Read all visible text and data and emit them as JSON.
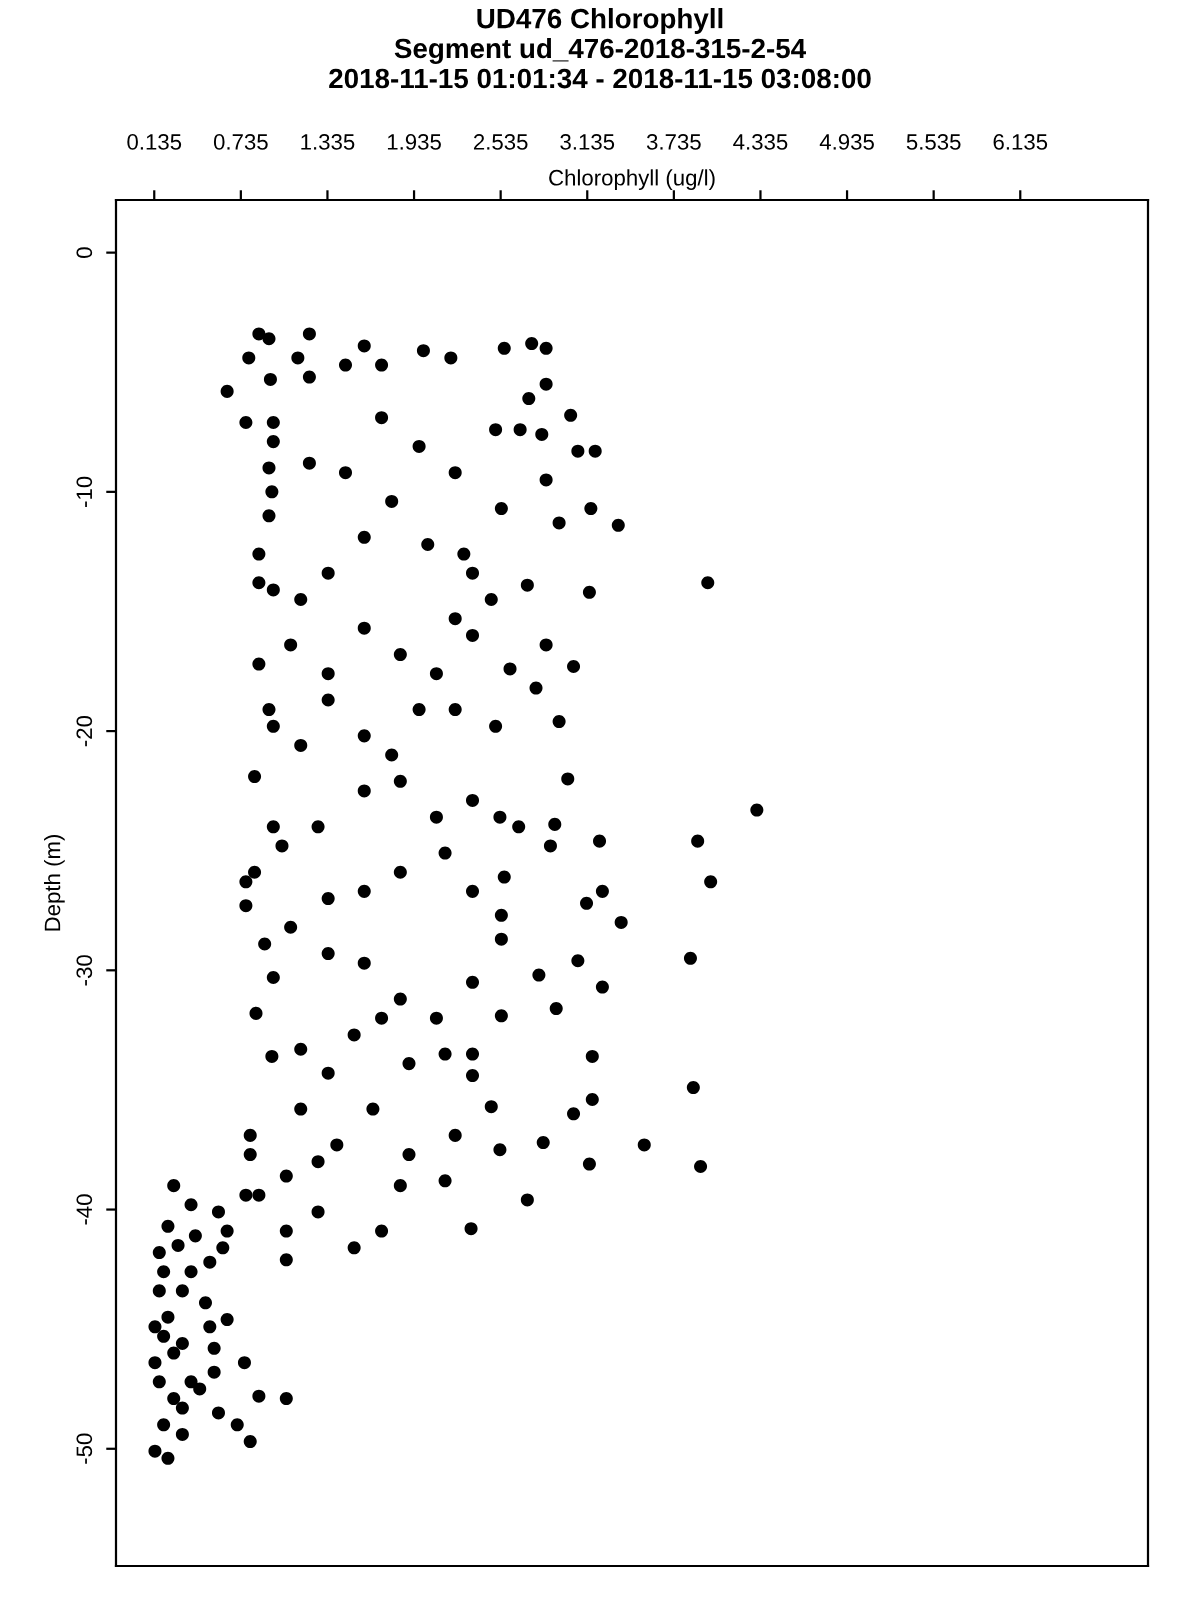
{
  "chart_data": {
    "type": "scatter",
    "title": "UD476 Chlorophyll\nSegment ud_476-2018-315-2-54\n2018-11-15 01:01:34 - 2018-11-15 03:08:00",
    "xlabel": "Chlorophyll (ug/l)",
    "ylabel": "Depth (m)",
    "xlim": [
      -0.13,
      7.02
    ],
    "ylim": [
      -54.9,
      2.2
    ],
    "xticks": [
      {
        "value": 0.135,
        "label": "0.135"
      },
      {
        "value": 0.735,
        "label": "0.735"
      },
      {
        "value": 1.335,
        "label": "1.335"
      },
      {
        "value": 1.935,
        "label": "1.935"
      },
      {
        "value": 2.535,
        "label": "2.535"
      },
      {
        "value": 3.135,
        "label": "3.135"
      },
      {
        "value": 3.735,
        "label": "3.735"
      },
      {
        "value": 4.335,
        "label": "4.335"
      },
      {
        "value": 4.935,
        "label": "4.935"
      },
      {
        "value": 5.535,
        "label": "5.535"
      },
      {
        "value": 6.135,
        "label": "6.135"
      }
    ],
    "yticks": [
      0,
      -10,
      -20,
      -30,
      -40,
      -50
    ],
    "grid": false,
    "legend": false,
    "marker": "circle",
    "series": [
      {
        "color": "#000000",
        "x": [
          0.64,
          0.77,
          0.79,
          0.86,
          0.93,
          0.94,
          0.96,
          1.21,
          1.13,
          1.21,
          1.46,
          1.59,
          1.71,
          2.0,
          2.19,
          2.56,
          2.75,
          2.85,
          2.85,
          2.73,
          3.02,
          2.5,
          2.67,
          2.82,
          3.07,
          3.19,
          3.35,
          3.16,
          2.94,
          3.97,
          3.15,
          2.85,
          2.54,
          2.34,
          2.22,
          1.97,
          1.71,
          1.46,
          1.21,
          0.96,
          0.93,
          0.95,
          0.93,
          0.86,
          0.86,
          0.96,
          1.15,
          1.34,
          1.59,
          1.78,
          2.03,
          2.28,
          2.47,
          2.72,
          2.85,
          3.04,
          2.94,
          2.78,
          2.6,
          2.34,
          2.22,
          2.09,
          1.84,
          1.59,
          1.34,
          1.08,
          0.86,
          0.93,
          0.83,
          0.96,
          1.15,
          1.34,
          1.59,
          1.78,
          1.97,
          2.22,
          2.5,
          3.0,
          2.91,
          2.66,
          2.53,
          2.34,
          2.09,
          1.84,
          1.59,
          1.27,
          0.96,
          0.83,
          1.02,
          0.77,
          0.77,
          0.9,
          1.08,
          1.34,
          1.59,
          1.84,
          2.15,
          2.34,
          2.56,
          2.54,
          2.54,
          2.88,
          3.22,
          3.24,
          3.37,
          3.13,
          3.9,
          4.31,
          3.99,
          3.85,
          3.07,
          3.24,
          2.8,
          2.92,
          2.54,
          2.34,
          2.09,
          1.84,
          1.59,
          1.34,
          0.96,
          0.84,
          0.95,
          1.15,
          1.34,
          1.52,
          1.71,
          1.9,
          2.15,
          2.34,
          2.47,
          3.04,
          3.17,
          3.17,
          2.83,
          3.15,
          3.53,
          3.87,
          3.92,
          2.72,
          2.33,
          2.15,
          1.84,
          1.71,
          1.52,
          1.27,
          1.05,
          1.05,
          1.05,
          0.8,
          0.8,
          0.77,
          0.86,
          1.15,
          1.4,
          1.65,
          1.9,
          2.22,
          2.53,
          2.34,
          1.27,
          0.27,
          0.23,
          0.17,
          0.39,
          0.58,
          0.64,
          0.52,
          0.33,
          0.17,
          0.14,
          0.23,
          0.33,
          0.64,
          0.55,
          0.14,
          0.39,
          0.76,
          0.86,
          1.05,
          0.58,
          0.71,
          0.8,
          0.2,
          0.14,
          0.23,
          0.33,
          0.45,
          0.27,
          0.17,
          0.2,
          0.39,
          0.49,
          0.27,
          0.33,
          0.52,
          0.61,
          0.42,
          0.3,
          0.2,
          0.55
        ],
        "values": [
          -5.8,
          -7.1,
          -4.4,
          -3.4,
          -3.6,
          -5.3,
          -7.1,
          -3.4,
          -4.4,
          -5.2,
          -4.7,
          -3.9,
          -4.7,
          -4.1,
          -4.4,
          -4.0,
          -3.8,
          -4.0,
          -5.5,
          -6.1,
          -6.8,
          -7.4,
          -7.4,
          -7.6,
          -8.3,
          -8.3,
          -11.4,
          -10.7,
          -11.3,
          -13.8,
          -14.2,
          -9.5,
          -10.7,
          -13.4,
          -9.2,
          -8.1,
          -6.9,
          -9.2,
          -8.8,
          -7.9,
          -9.0,
          -10.0,
          -11.0,
          -12.6,
          -13.8,
          -14.1,
          -14.5,
          -13.4,
          -11.9,
          -10.4,
          -12.2,
          -12.6,
          -14.5,
          -13.9,
          -16.4,
          -17.3,
          -19.6,
          -18.2,
          -17.4,
          -16.0,
          -15.3,
          -17.6,
          -16.8,
          -15.7,
          -17.6,
          -16.4,
          -17.2,
          -19.1,
          -21.9,
          -19.8,
          -20.6,
          -18.7,
          -20.2,
          -21.0,
          -19.1,
          -19.1,
          -19.8,
          -22.0,
          -23.9,
          -24.0,
          -23.6,
          -22.9,
          -23.6,
          -22.1,
          -22.5,
          -24.0,
          -24.0,
          -25.9,
          -24.8,
          -26.3,
          -27.3,
          -28.9,
          -28.2,
          -27.0,
          -26.7,
          -25.9,
          -25.1,
          -26.7,
          -26.1,
          -27.7,
          -28.7,
          -24.8,
          -24.6,
          -26.7,
          -28.0,
          -27.2,
          -24.6,
          -23.3,
          -26.3,
          -29.5,
          -29.6,
          -30.7,
          -30.2,
          -31.6,
          -31.9,
          -30.5,
          -32.0,
          -31.2,
          -29.7,
          -29.3,
          -30.3,
          -31.8,
          -33.6,
          -33.3,
          -34.3,
          -32.7,
          -32.0,
          -33.9,
          -33.5,
          -34.4,
          -35.7,
          -36.0,
          -33.6,
          -35.4,
          -37.2,
          -38.1,
          -37.3,
          -34.9,
          -38.2,
          -39.6,
          -40.8,
          -38.8,
          -39.0,
          -40.9,
          -41.6,
          -40.1,
          -42.1,
          -40.9,
          -38.6,
          -37.7,
          -36.9,
          -39.4,
          -39.4,
          -35.8,
          -37.3,
          -35.8,
          -37.7,
          -36.9,
          -37.5,
          -33.5,
          -38.0,
          -39.0,
          -40.7,
          -41.8,
          -39.8,
          -40.1,
          -40.9,
          -42.2,
          -43.4,
          -43.4,
          -44.9,
          -44.5,
          -45.6,
          -44.6,
          -45.8,
          -46.4,
          -47.2,
          -46.4,
          -47.8,
          -47.9,
          -48.5,
          -49.0,
          -49.7,
          -49.0,
          -50.1,
          -50.4,
          -49.4,
          -47.5,
          -47.9,
          -47.2,
          -42.6,
          -42.6,
          -43.9,
          -46.0,
          -48.3,
          -44.9,
          -41.6,
          -41.1,
          -41.5,
          -45.3,
          -46.8
        ]
      }
    ]
  }
}
